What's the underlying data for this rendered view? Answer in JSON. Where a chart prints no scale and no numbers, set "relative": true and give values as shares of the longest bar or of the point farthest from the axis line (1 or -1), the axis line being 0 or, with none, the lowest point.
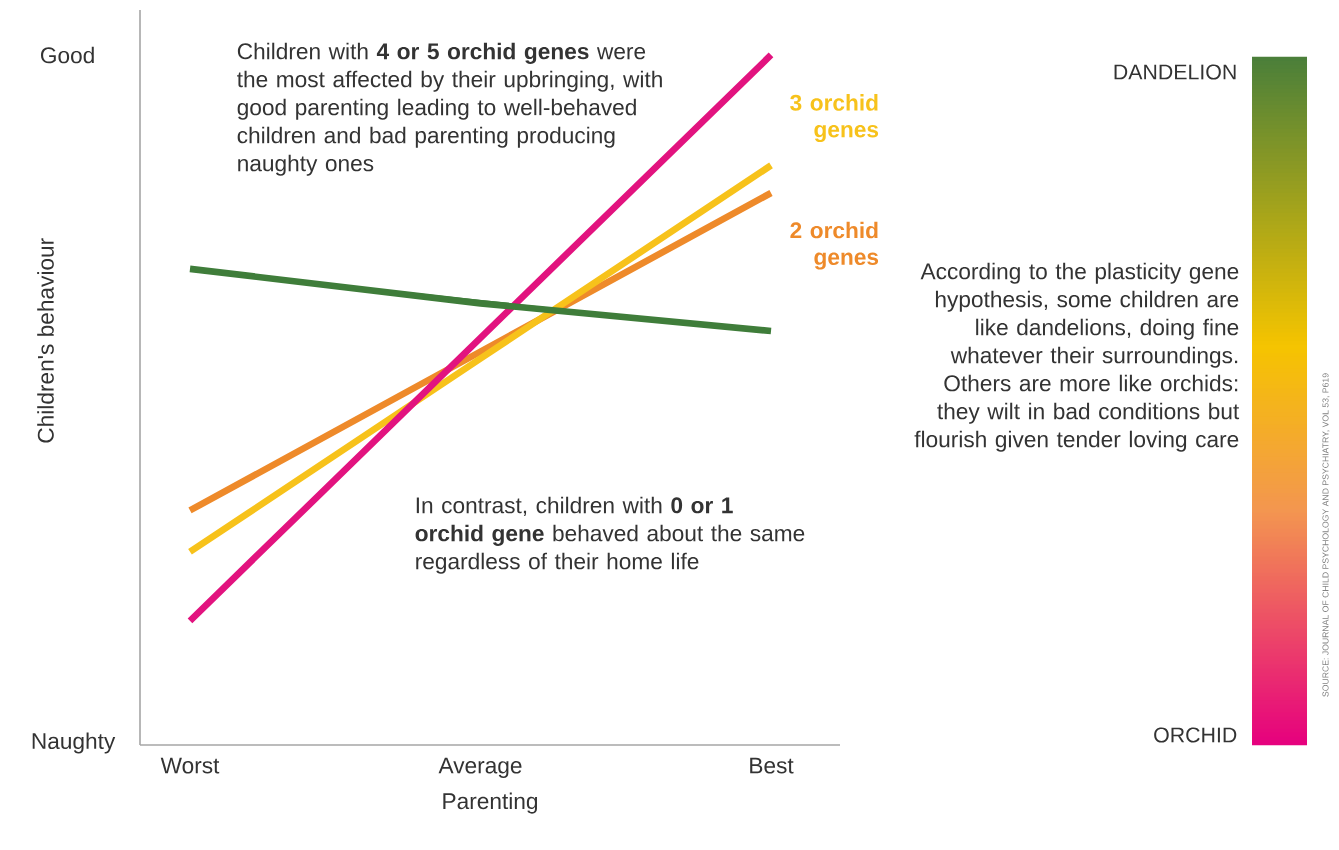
{
  "chart_data": {
    "type": "line",
    "xlabel": "Parenting",
    "ylabel": "Children's behaviour",
    "marker": "none",
    "relative": true,
    "categories": [
      "Worst",
      "Average",
      "Best"
    ],
    "series": [
      {
        "name": "2 orchid genes",
        "color": "#ee8a2a",
        "values": [
          0.34,
          0.57,
          0.8
        ]
      },
      {
        "name": "3 orchid genes",
        "color": "#f7c21b",
        "values": [
          0.28,
          0.56,
          0.84
        ]
      },
      {
        "color": "#e2137f",
        "values": [
          0.18,
          0.59,
          1.0
        ]
      },
      {
        "color": "#3f7d3a",
        "values": [
          0.69,
          0.64,
          0.6
        ]
      }
    ],
    "annotations": [
      "Children with **4 or 5 orchid genes** were the most affected by their upbringing, with good parenting leading to well-behaved children and bad parenting producing naughty ones",
      "In contrast, children with **0 or 1 orchid gene** behaved about the same regardless of their home life",
      "According to the plasticity gene hypothesis, some children are like dandelions, doing fine whatever their surroundings. Others are more like orchids: they wilt in bad conditions but flourish given tender loving care",
      "DANDELION",
      "ORCHID",
      "SOURCE: JOURNAL OF CHILD PSYCHOLOGY AND PSYCHIATRY, VOL 53, P619",
      "Good",
      "Naughty"
    ]
  }
}
